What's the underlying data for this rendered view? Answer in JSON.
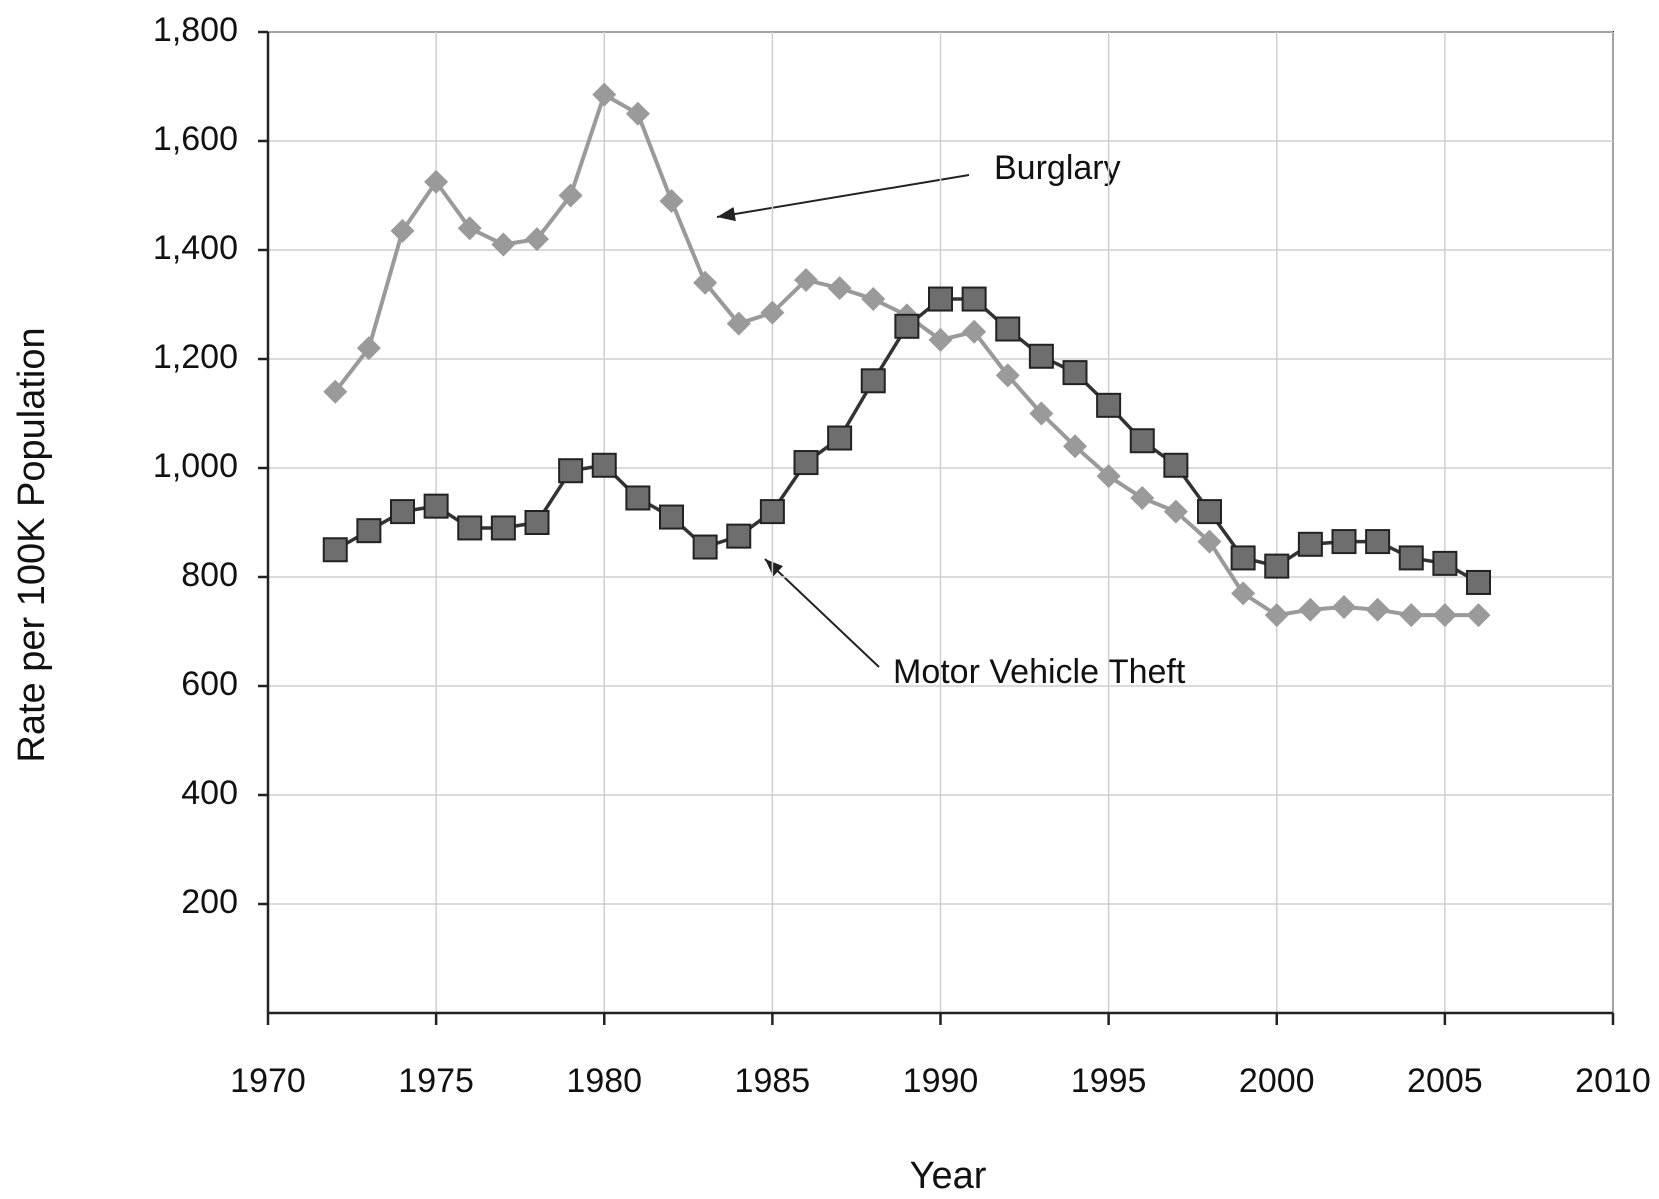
{
  "chart_data": {
    "type": "line",
    "x_label": "Year",
    "y_label": "Rate per 100K Population",
    "x": [
      1972,
      1973,
      1974,
      1975,
      1976,
      1977,
      1978,
      1979,
      1980,
      1981,
      1982,
      1983,
      1984,
      1985,
      1986,
      1987,
      1988,
      1989,
      1990,
      1991,
      1992,
      1993,
      1994,
      1995,
      1996,
      1997,
      1998,
      1999,
      2000,
      2001,
      2002,
      2003,
      2004,
      2005,
      2006
    ],
    "series": [
      {
        "name": "Burglary",
        "color": "#9a9a9a",
        "marker": "diamond",
        "values": [
          1140,
          1220,
          1435,
          1525,
          1440,
          1410,
          1420,
          1500,
          1685,
          1650,
          1490,
          1340,
          1265,
          1285,
          1345,
          1330,
          1310,
          1280,
          1235,
          1250,
          1170,
          1100,
          1040,
          985,
          945,
          920,
          865,
          770,
          730,
          740,
          745,
          740,
          730,
          730,
          730
        ]
      },
      {
        "name": "Motor Vehicle Theft",
        "color": "#333333",
        "marker": "square",
        "values": [
          850,
          885,
          920,
          930,
          890,
          890,
          900,
          995,
          1005,
          945,
          910,
          855,
          875,
          920,
          1010,
          1055,
          1160,
          1260,
          1310,
          1310,
          1255,
          1205,
          1175,
          1115,
          1050,
          1005,
          920,
          835,
          820,
          860,
          865,
          865,
          835,
          825,
          790
        ]
      }
    ],
    "xlim": [
      1970,
      2010
    ],
    "xticks": [
      1970,
      1975,
      1980,
      1985,
      1990,
      1995,
      2000,
      2005,
      2010
    ],
    "ylim": [
      0,
      1800
    ],
    "yticks": [
      200,
      400,
      600,
      800,
      {
        "value": 1000,
        "label": "1,000"
      },
      {
        "value": 1200,
        "label": "1,200"
      },
      {
        "value": 1400,
        "label": "1,400"
      },
      {
        "value": 1600,
        "label": "1,600"
      },
      {
        "value": 1800,
        "label": "1,800"
      }
    ],
    "grid": true
  }
}
